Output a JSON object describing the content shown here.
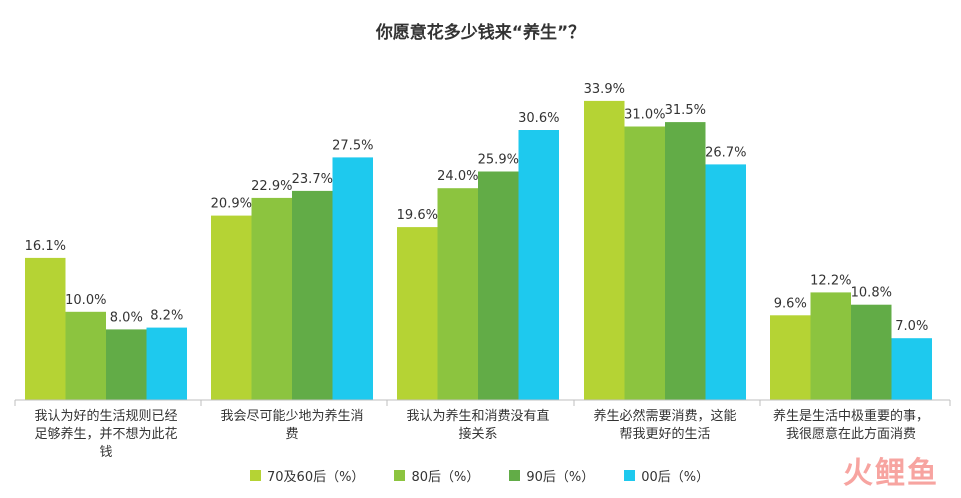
{
  "chart_data": {
    "type": "bar",
    "title": "你愿意花多少钱来“养生”？",
    "categories": [
      "我认为好的生活规则已经足够养生，并不想为此花钱",
      "我会尽可能少地为养生消费",
      "我认为养生和消费没有直接关系",
      "养生必然需要消费，这能帮我更好的生活",
      "养生是生活中极重要的事，我很愿意在此方面消费"
    ],
    "category_lines": [
      [
        "我认为好的生活规则已经",
        "足够养生，并不想为此花",
        "钱"
      ],
      [
        "我会尽可能少地为养生消",
        "费"
      ],
      [
        "我认为养生和消费没有直",
        "接关系"
      ],
      [
        "养生必然需要消费，这能",
        "帮我更好的生活"
      ],
      [
        "养生是生活中极重要的事，",
        "我很愿意在此方面消费"
      ]
    ],
    "series": [
      {
        "name": "70及60后（%）",
        "color": "#b5d334",
        "values": [
          16.1,
          20.9,
          19.6,
          33.9,
          9.6
        ]
      },
      {
        "name": "80后（%）",
        "color": "#8cc43f",
        "values": [
          10.0,
          22.9,
          24.0,
          31.0,
          12.2
        ]
      },
      {
        "name": "90后（%）",
        "color": "#62ac47",
        "values": [
          8.0,
          23.7,
          25.9,
          31.5,
          10.8
        ]
      },
      {
        "name": "00后（%）",
        "color": "#1ec9ee",
        "values": [
          8.2,
          27.5,
          30.6,
          26.7,
          7.0
        ]
      }
    ],
    "value_labels": [
      [
        "16.1%",
        "20.9%",
        "19.6%",
        "33.9%",
        "9.6%"
      ],
      [
        "10.0%",
        "22.9%",
        "24.0%",
        "31.0%",
        "12.2%"
      ],
      [
        "8.0%",
        "23.7%",
        "25.9%",
        "31.5%",
        "10.8%"
      ],
      [
        "8.2%",
        "27.5%",
        "30.6%",
        "26.7%",
        "7.0%"
      ]
    ],
    "ylim": [
      0,
      34
    ],
    "grid": false,
    "legend_position": "bottom"
  },
  "watermark": "火鲤鱼"
}
